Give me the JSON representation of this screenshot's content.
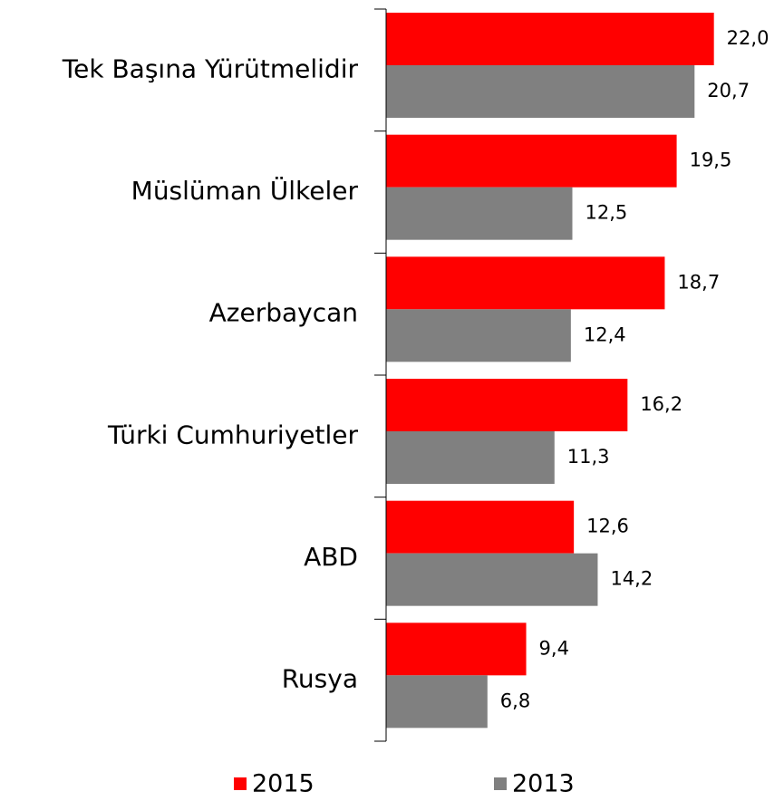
{
  "chart_data": {
    "type": "bar",
    "orientation": "horizontal",
    "categories": [
      "Tek Başına Yürütmelidir",
      "Müslüman Ülkeler",
      "Azerbaycan",
      "Türki Cumhuriyetler",
      "ABD",
      "Rusya"
    ],
    "series": [
      {
        "name": "2015",
        "color": "#ff0000",
        "values": [
          22.0,
          19.5,
          18.7,
          16.2,
          12.6,
          9.4
        ],
        "value_labels": [
          "22,0",
          "19,5",
          "18,7",
          "16,2",
          "12,6",
          "9,4"
        ]
      },
      {
        "name": "2013",
        "color": "#808080",
        "values": [
          20.7,
          12.5,
          12.4,
          11.3,
          14.2,
          6.8
        ],
        "value_labels": [
          "20,7",
          "12,5",
          "12,4",
          "11,3",
          "14,2",
          "6,8"
        ]
      }
    ],
    "xlim": [
      0,
      25
    ],
    "legend": "bottom"
  }
}
